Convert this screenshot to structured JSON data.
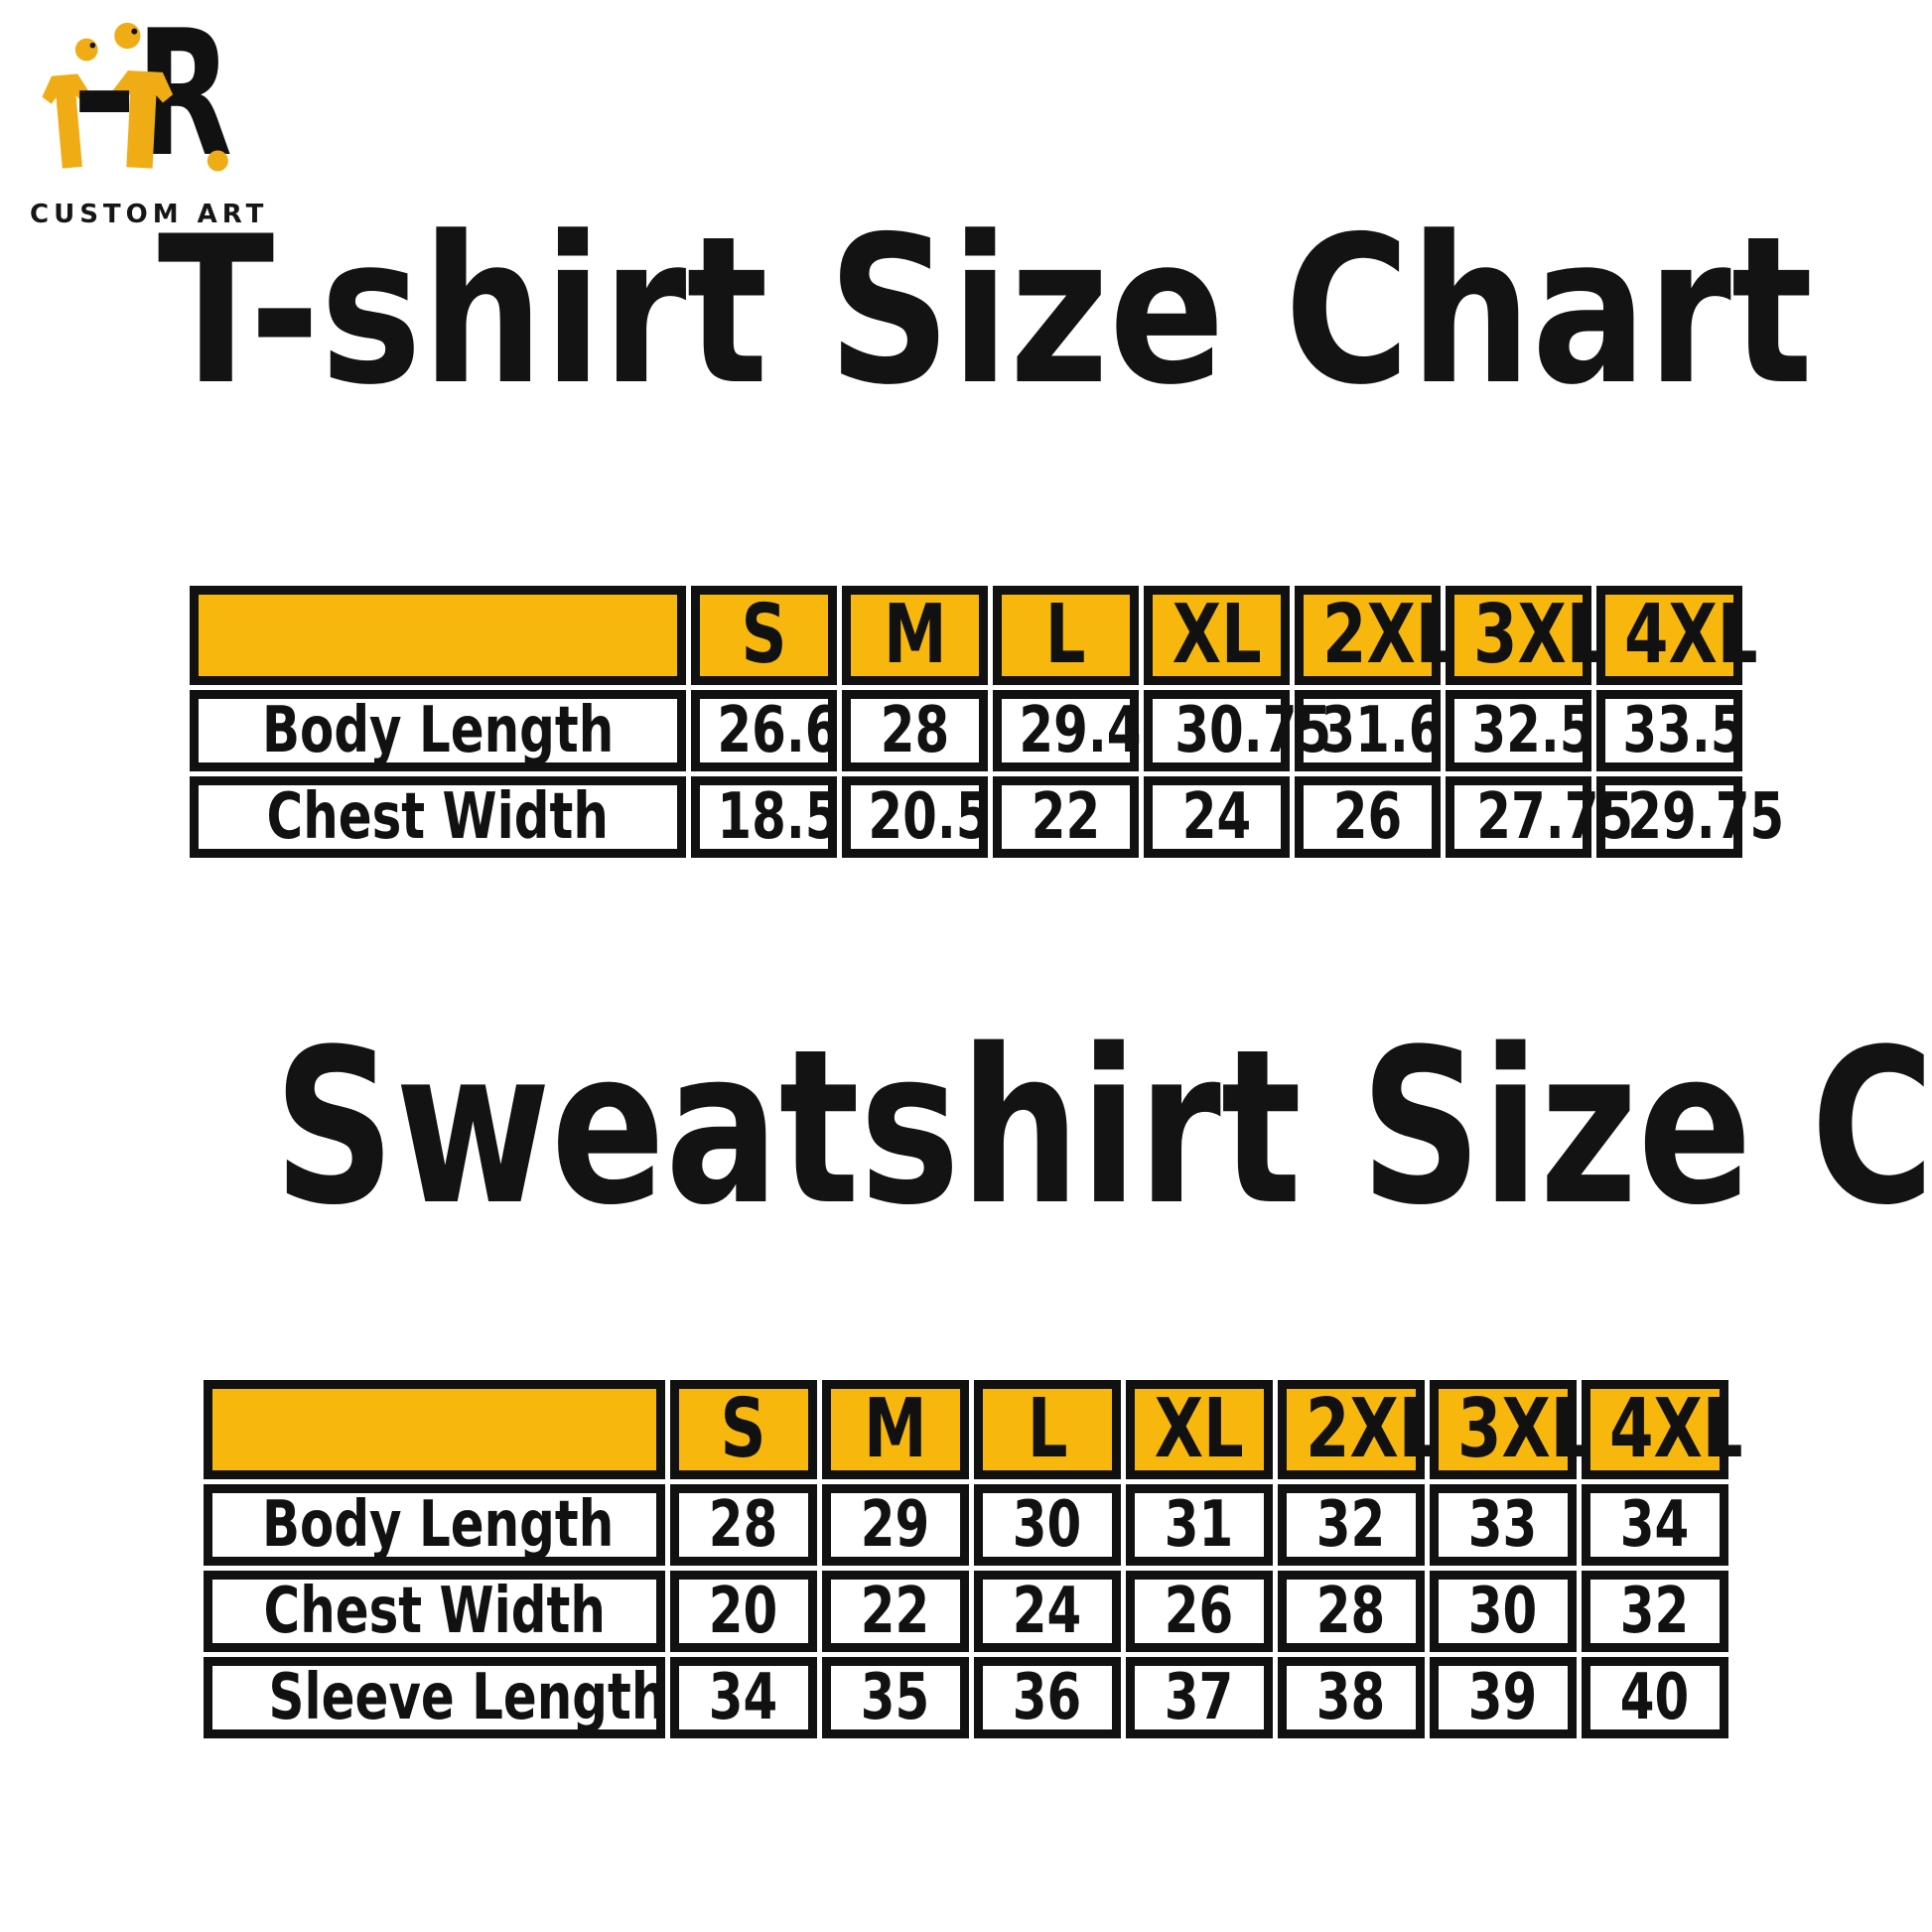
{
  "brand": {
    "tagline": "CUSTOM ART"
  },
  "tshirt_chart": {
    "title": "T-shirt Size Chart",
    "sizes": [
      "S",
      "M",
      "L",
      "XL",
      "2XL",
      "3XL",
      "4XL"
    ],
    "rows": [
      {
        "label": "Body Length",
        "values": [
          "26.6",
          "28",
          "29.4",
          "30.75",
          "31.6",
          "32.5",
          "33.5"
        ]
      },
      {
        "label": "Chest Width",
        "values": [
          "18.5",
          "20.5",
          "22",
          "24",
          "26",
          "27.75",
          "29.75"
        ]
      }
    ]
  },
  "sweatshirt_chart": {
    "title": "Sweatshirt Size Chart",
    "sizes": [
      "S",
      "M",
      "L",
      "XL",
      "2XL",
      "3XL",
      "4XL"
    ],
    "rows": [
      {
        "label": "Body Length",
        "values": [
          "28",
          "29",
          "30",
          "31",
          "32",
          "33",
          "34"
        ]
      },
      {
        "label": "Chest Width",
        "values": [
          "20",
          "22",
          "24",
          "26",
          "28",
          "30",
          "32"
        ]
      },
      {
        "label": "Sleeve Length",
        "values": [
          "34",
          "35",
          "36",
          "37",
          "38",
          "39",
          "40"
        ]
      }
    ]
  },
  "colors": {
    "table_header_yellow": "#F7B70C",
    "logo_yellow": "#F0AC15",
    "border_black": "#111111"
  }
}
